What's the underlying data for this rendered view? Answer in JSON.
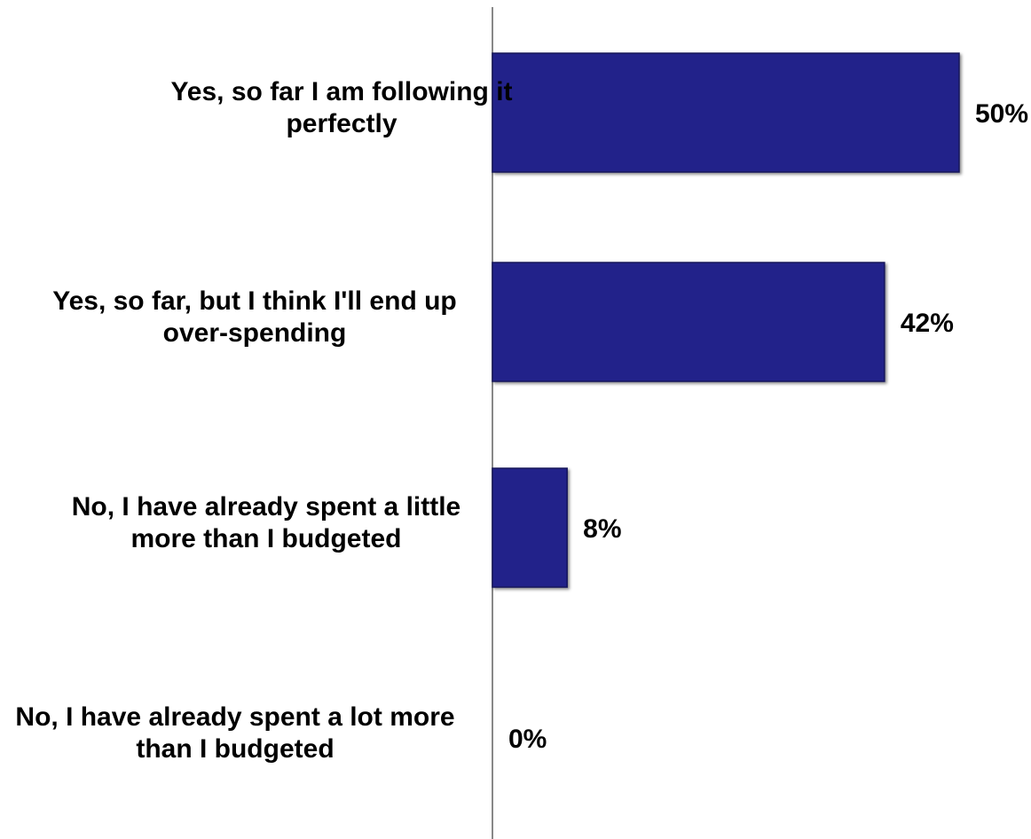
{
  "chart_data": {
    "type": "bar",
    "orientation": "horizontal",
    "categories": [
      "Yes, so far I am following it perfectly",
      "Yes, so far, but I think I'll end up over-spending",
      "No, I have already spent a little more than I budgeted",
      "No, I have already spent a lot more than I budgeted"
    ],
    "category_lines": [
      [
        "Yes, so far I am following it",
        "perfectly"
      ],
      [
        "Yes, so far, but I think I'll end up",
        "over-spending"
      ],
      [
        "No, I have already spent a little",
        "more than I budgeted"
      ],
      [
        "No, I have already spent a lot more",
        "than I budgeted"
      ]
    ],
    "values": [
      50,
      42,
      8,
      0
    ],
    "data_labels": [
      "50%",
      "42%",
      "8%",
      "0%"
    ],
    "xlim": [
      0,
      50
    ],
    "grid": false,
    "legend": "none",
    "colors": {
      "bar": "#23238a",
      "bar_edge": "#14145a",
      "axis": "#888888"
    }
  }
}
